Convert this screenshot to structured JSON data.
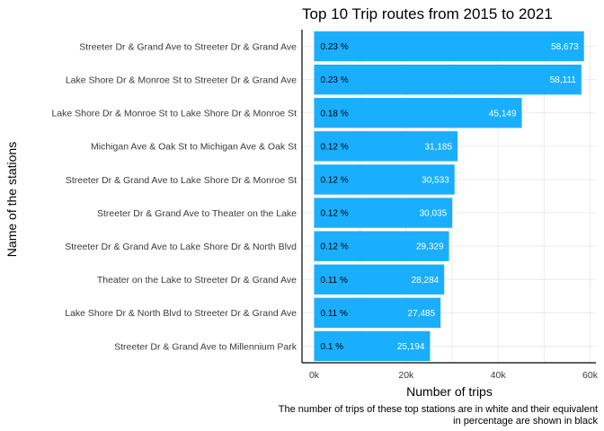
{
  "colors": {
    "bar": "#1AAEFF",
    "count_label": "#ffffff",
    "pct_label": "#000000",
    "grid": "#ebebeb",
    "axis": "#000000"
  },
  "chart_data": {
    "type": "bar",
    "orientation": "horizontal",
    "title": "Top 10 Trip routes from 2015 to 2021",
    "xlabel": "Number of trips",
    "ylabel": "Name of the stations",
    "xlim": [
      0,
      61000
    ],
    "x_ticks": [
      0,
      20000,
      40000,
      60000
    ],
    "x_tick_labels": [
      "0k",
      "20k",
      "40k",
      "60k"
    ],
    "grid": true,
    "categories": [
      "Streeter Dr & Grand Ave to Streeter Dr & Grand Ave",
      "Lake Shore Dr & Monroe St to Streeter Dr & Grand Ave",
      "Lake Shore Dr & Monroe St to Lake Shore Dr & Monroe St",
      "Michigan Ave & Oak St to Michigan Ave & Oak St",
      "Streeter Dr & Grand Ave to Lake Shore Dr & Monroe St",
      "Streeter Dr & Grand Ave to Theater on the Lake",
      "Streeter Dr & Grand Ave to Lake Shore Dr & North Blvd",
      "Theater on the Lake to Streeter Dr & Grand Ave",
      "Lake Shore Dr & North Blvd to Streeter Dr & Grand Ave",
      "Streeter Dr & Grand Ave to Millennium Park"
    ],
    "values": [
      58673,
      58111,
      45149,
      31185,
      30533,
      30035,
      29329,
      28284,
      27485,
      25194
    ],
    "value_labels": [
      "58,673",
      "58,111",
      "45,149",
      "31,185",
      "30,533",
      "30,035",
      "29,329",
      "28,284",
      "27,485",
      "25,194"
    ],
    "percent_labels": [
      "0.23 %",
      "0.23 %",
      "0.18 %",
      "0.12 %",
      "0.12 %",
      "0.12 %",
      "0.12 %",
      "0.11 %",
      "0.11 %",
      "0.1 %"
    ],
    "caption": [
      "The number of trips of these top stations are in white and their equivalent",
      "in percentage are shown in black"
    ]
  }
}
